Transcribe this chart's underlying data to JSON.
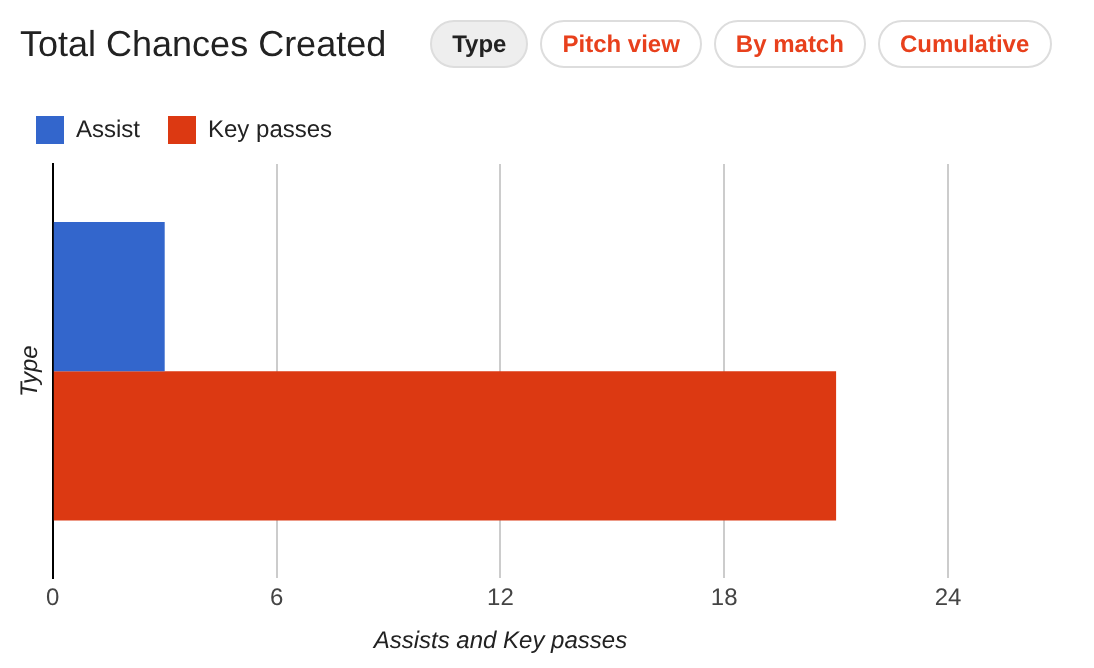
{
  "chart_data": {
    "type": "bar",
    "title": "Total Chances Created",
    "annotations": [
      "Type",
      "Pitch view",
      "By match",
      "Cumulative"
    ],
    "orientation": "horizontal",
    "categories": [
      null
    ],
    "series": [
      {
        "name": "Assist",
        "color": "#3366cc",
        "values": [
          3
        ]
      },
      {
        "name": "Key passes",
        "color": "#dc3912",
        "values": [
          21
        ]
      }
    ],
    "xlabel": "Assists and Key passes",
    "ylabel": "Type",
    "xlim": [
      0,
      24
    ],
    "xticks": [
      0,
      6,
      12,
      18,
      24
    ],
    "grid": "x",
    "legend": "top left"
  }
}
